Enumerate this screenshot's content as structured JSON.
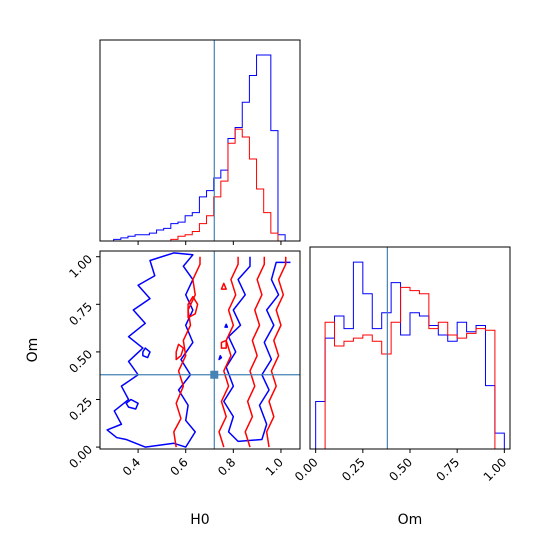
{
  "chart_data": {
    "type": "corner",
    "parameters": [
      "H0",
      "Om"
    ],
    "truths": {
      "H0": 0.72,
      "Om": 0.38
    },
    "colors": {
      "series_blue": "#0000ff",
      "series_red": "#ff0000",
      "truth": "#4682b4"
    },
    "panels": [
      {
        "id": "hist-H0",
        "type": "histogram",
        "xlim": [
          0.24,
          1.08
        ],
        "x_ticks": [
          0.4,
          0.6,
          0.8,
          1.0
        ],
        "tick_labels_shown": false,
        "bin_edges": [
          0.2375,
          0.2675,
          0.2975,
          0.3275,
          0.3575,
          0.3875,
          0.4175,
          0.4475,
          0.4775,
          0.5075,
          0.5375,
          0.5675,
          0.5975,
          0.6275,
          0.6575,
          0.6875,
          0.7175,
          0.7475,
          0.7775,
          0.8075,
          0.8375,
          0.8675,
          0.8975,
          0.9275,
          0.9575,
          0.9875,
          1.0175,
          1.0475
        ],
        "series": [
          {
            "name": "",
            "color": "#0000ff",
            "values": [
              0,
              0,
              1,
              2,
              3,
              4,
              4,
              5,
              7,
              8,
              11,
              12,
              16,
              18,
              28,
              32,
              40,
              45,
              65,
              72,
              88,
              105,
              118,
              118,
              70,
              4,
              0
            ]
          },
          {
            "name": "",
            "color": "#ff0000",
            "values": [
              0,
              0,
              0,
              0,
              0,
              0,
              0,
              0,
              0,
              0,
              1,
              3,
              4,
              6,
              11,
              16,
              28,
              38,
              62,
              71,
              66,
              52,
              33,
              18,
              5,
              0,
              0
            ]
          }
        ]
      },
      {
        "id": "contour-H0-Om",
        "type": "contour",
        "xlabel": "H0",
        "ylabel": "Om",
        "xlim": [
          0.24,
          1.08
        ],
        "ylim": [
          -0.01,
          1.03
        ],
        "x_ticks": [
          0.4,
          0.6,
          0.8,
          1.0
        ],
        "x_tick_labels": [
          "0.4",
          "0.6",
          "0.8",
          "1.0"
        ],
        "y_ticks": [
          0.0,
          0.25,
          0.5,
          0.75,
          1.0
        ],
        "y_tick_labels": [
          "0.00",
          "0.25",
          "0.50",
          "0.75",
          "1.00"
        ],
        "contours": [
          {
            "color": "#0000ff",
            "closed": true,
            "points": [
              [
                0.35,
                0.04
              ],
              [
                0.43,
                0.0
              ],
              [
                0.55,
                0.02
              ],
              [
                0.6,
                0.0
              ],
              [
                0.64,
                0.08
              ],
              [
                0.6,
                0.14
              ],
              [
                0.61,
                0.22
              ],
              [
                0.57,
                0.3
              ],
              [
                0.62,
                0.38
              ],
              [
                0.58,
                0.46
              ],
              [
                0.63,
                0.55
              ],
              [
                0.6,
                0.64
              ],
              [
                0.63,
                0.72
              ],
              [
                0.6,
                0.8
              ],
              [
                0.63,
                0.88
              ],
              [
                0.59,
                0.95
              ],
              [
                0.63,
                1.01
              ],
              [
                0.55,
                1.02
              ],
              [
                0.45,
                0.98
              ],
              [
                0.47,
                0.9
              ],
              [
                0.4,
                0.85
              ],
              [
                0.45,
                0.78
              ],
              [
                0.38,
                0.72
              ],
              [
                0.43,
                0.65
              ],
              [
                0.36,
                0.58
              ],
              [
                0.42,
                0.52
              ],
              [
                0.36,
                0.45
              ],
              [
                0.4,
                0.38
              ],
              [
                0.33,
                0.32
              ],
              [
                0.36,
                0.25
              ],
              [
                0.3,
                0.19
              ],
              [
                0.33,
                0.12
              ],
              [
                0.27,
                0.09
              ],
              [
                0.31,
                0.05
              ]
            ]
          },
          {
            "color": "#0000ff",
            "closed": false,
            "points": [
              [
                1.04,
                0.97
              ],
              [
                0.98,
                0.97
              ],
              [
                0.96,
                0.88
              ],
              [
                0.99,
                0.8
              ],
              [
                0.94,
                0.72
              ],
              [
                0.97,
                0.64
              ],
              [
                0.93,
                0.55
              ],
              [
                0.96,
                0.46
              ],
              [
                0.92,
                0.38
              ],
              [
                0.95,
                0.3
              ],
              [
                0.91,
                0.22
              ],
              [
                0.94,
                0.12
              ],
              [
                0.92,
                0.04
              ],
              [
                0.82,
                0.03
              ],
              [
                0.78,
                0.08
              ],
              [
                0.8,
                0.16
              ],
              [
                0.76,
                0.24
              ],
              [
                0.8,
                0.32
              ],
              [
                0.77,
                0.42
              ],
              [
                0.81,
                0.5
              ],
              [
                0.78,
                0.58
              ],
              [
                0.83,
                0.64
              ],
              [
                0.8,
                0.72
              ],
              [
                0.85,
                0.8
              ],
              [
                0.82,
                0.88
              ],
              [
                0.87,
                0.95
              ],
              [
                0.87,
                1.0
              ]
            ]
          },
          {
            "color": "#0000ff",
            "closed": true,
            "points": [
              [
                0.36,
                0.21
              ],
              [
                0.39,
                0.2
              ],
              [
                0.4,
                0.23
              ],
              [
                0.37,
                0.25
              ],
              [
                0.35,
                0.23
              ]
            ]
          },
          {
            "color": "#0000ff",
            "closed": true,
            "points": [
              [
                0.42,
                0.48
              ],
              [
                0.44,
                0.47
              ],
              [
                0.45,
                0.5
              ],
              [
                0.43,
                0.52
              ],
              [
                0.42,
                0.5
              ]
            ]
          },
          {
            "color": "#0000ff",
            "closed": true,
            "points": [
              [
                0.74,
                0.46
              ],
              [
                0.75,
                0.47
              ],
              [
                0.745,
                0.48
              ]
            ]
          },
          {
            "color": "#0000ff",
            "closed": true,
            "points": [
              [
                0.765,
                0.63
              ],
              [
                0.775,
                0.63
              ],
              [
                0.77,
                0.645
              ]
            ]
          },
          {
            "color": "#ff0000",
            "closed": false,
            "points": [
              [
                0.56,
                0.0
              ],
              [
                0.55,
                0.08
              ],
              [
                0.58,
                0.15
              ],
              [
                0.56,
                0.23
              ],
              [
                0.59,
                0.32
              ],
              [
                0.57,
                0.4
              ],
              [
                0.6,
                0.48
              ],
              [
                0.59,
                0.56
              ],
              [
                0.62,
                0.64
              ],
              [
                0.61,
                0.72
              ],
              [
                0.64,
                0.8
              ],
              [
                0.63,
                0.88
              ],
              [
                0.66,
                0.96
              ],
              [
                0.66,
                1.0
              ]
            ]
          },
          {
            "color": "#ff0000",
            "closed": false,
            "points": [
              [
                0.76,
                0.0
              ],
              [
                0.74,
                0.08
              ],
              [
                0.77,
                0.16
              ],
              [
                0.75,
                0.24
              ],
              [
                0.78,
                0.32
              ],
              [
                0.76,
                0.4
              ],
              [
                0.79,
                0.48
              ],
              [
                0.77,
                0.56
              ],
              [
                0.8,
                0.64
              ],
              [
                0.78,
                0.72
              ],
              [
                0.81,
                0.8
              ],
              [
                0.79,
                0.88
              ],
              [
                0.82,
                0.96
              ],
              [
                0.82,
                1.0
              ]
            ]
          },
          {
            "color": "#ff0000",
            "closed": false,
            "points": [
              [
                0.87,
                0.0
              ],
              [
                0.85,
                0.08
              ],
              [
                0.88,
                0.16
              ],
              [
                0.86,
                0.24
              ],
              [
                0.89,
                0.32
              ],
              [
                0.87,
                0.4
              ],
              [
                0.9,
                0.48
              ],
              [
                0.88,
                0.56
              ],
              [
                0.91,
                0.64
              ],
              [
                0.89,
                0.72
              ],
              [
                0.92,
                0.8
              ],
              [
                0.9,
                0.88
              ],
              [
                0.93,
                0.96
              ],
              [
                0.93,
                1.0
              ]
            ]
          },
          {
            "color": "#ff0000",
            "closed": false,
            "points": [
              [
                0.95,
                0.0
              ],
              [
                0.94,
                0.08
              ],
              [
                0.97,
                0.16
              ],
              [
                0.95,
                0.24
              ],
              [
                0.98,
                0.32
              ],
              [
                0.96,
                0.4
              ],
              [
                0.99,
                0.48
              ],
              [
                0.97,
                0.56
              ],
              [
                1.0,
                0.64
              ],
              [
                0.98,
                0.72
              ],
              [
                1.01,
                0.8
              ],
              [
                0.99,
                0.88
              ],
              [
                1.02,
                0.96
              ],
              [
                1.02,
                1.0
              ]
            ]
          },
          {
            "color": "#ff0000",
            "closed": true,
            "points": [
              [
                0.61,
                0.68
              ],
              [
                0.64,
                0.7
              ],
              [
                0.65,
                0.75
              ],
              [
                0.63,
                0.79
              ],
              [
                0.61,
                0.75
              ]
            ]
          },
          {
            "color": "#ff0000",
            "closed": true,
            "points": [
              [
                0.56,
                0.46
              ],
              [
                0.58,
                0.48
              ],
              [
                0.59,
                0.52
              ],
              [
                0.57,
                0.54
              ],
              [
                0.56,
                0.5
              ]
            ]
          },
          {
            "color": "#ff0000",
            "closed": true,
            "points": [
              [
                0.75,
                0.52
              ],
              [
                0.77,
                0.52
              ],
              [
                0.77,
                0.56
              ],
              [
                0.75,
                0.55
              ]
            ]
          },
          {
            "color": "#ff0000",
            "closed": true,
            "points": [
              [
                0.75,
                0.83
              ],
              [
                0.77,
                0.83
              ],
              [
                0.76,
                0.86
              ]
            ]
          }
        ]
      },
      {
        "id": "hist-Om",
        "type": "histogram",
        "xlabel": "Om",
        "xlim": [
          -0.03,
          1.03
        ],
        "x_ticks": [
          0.0,
          0.25,
          0.5,
          0.75,
          1.0
        ],
        "x_tick_labels": [
          "0.00",
          "0.25",
          "0.50",
          "0.75",
          "1.00"
        ],
        "bin_edges": [
          0.0,
          0.05,
          0.1,
          0.15,
          0.2,
          0.25,
          0.3,
          0.35,
          0.4,
          0.45,
          0.5,
          0.55,
          0.6,
          0.65,
          0.7,
          0.75,
          0.8,
          0.85,
          0.9,
          0.95,
          1.0
        ],
        "series": [
          {
            "name": "",
            "color": "#0000ff",
            "values": [
              30,
              70,
              84,
              76,
              118,
              98,
              76,
              86,
              105,
              72,
              86,
              84,
              78,
              72,
              68,
              80,
              74,
              78,
              40,
              10
            ]
          },
          {
            "name": "",
            "color": "#ff0000",
            "values": [
              0,
              80,
              65,
              68,
              70,
              72,
              68,
              60,
              80,
              102,
              100,
              98,
              76,
              80,
              72,
              70,
              73,
              76,
              75,
              0
            ]
          }
        ]
      }
    ]
  }
}
